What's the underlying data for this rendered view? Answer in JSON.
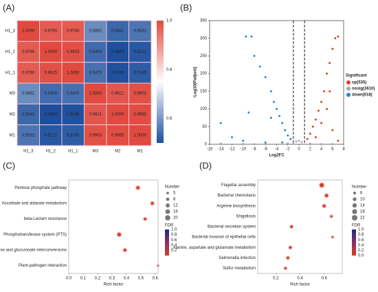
{
  "chart_data": [
    {
      "type": "heatmap",
      "panel": "(A)",
      "rows": [
        "H1_3",
        "H1_2",
        "H1_1",
        "M3",
        "M2",
        "M1"
      ],
      "columns": [
        "H1_3",
        "H1_2",
        "H1_1",
        "M3",
        "M2",
        "M1"
      ],
      "values": [
        [
          1.0,
          0.976,
          0.976,
          0.5862,
          0.5341,
          0.5532
        ],
        [
          0.976,
          1.0,
          0.9915,
          0.54,
          0.4983,
          0.5121
        ],
        [
          0.976,
          0.9915,
          1.0,
          0.547,
          0.5035,
          0.5185
        ],
        [
          0.5862,
          0.54,
          0.547,
          1.0,
          0.9821,
          0.9903
        ],
        [
          0.5341,
          0.4983,
          0.5035,
          0.9821,
          1.0,
          0.9955
        ],
        [
          0.5532,
          0.5121,
          0.5185,
          0.9903,
          0.9955,
          1.0
        ]
      ],
      "value_labels": [
        [
          "1.0000",
          "0.9760",
          "0.9760",
          "0.5862",
          "0.5341",
          "0.5532"
        ],
        [
          "0.9760",
          "1.0000",
          "0.9915",
          "0.5400",
          "0.4983",
          "0.5121"
        ],
        [
          "0.9760",
          "0.9915",
          "1.0000",
          "0.5470",
          "0.5035",
          "0.5185"
        ],
        [
          "0.5862",
          "0.5400",
          "0.5470",
          "1.0000",
          "0.9821",
          "0.9903"
        ],
        [
          "0.5341",
          "0.4983",
          "0.5035",
          "0.9821",
          "1.0000",
          "0.9955"
        ],
        [
          "0.5532",
          "0.5121",
          "0.5185",
          "0.9903",
          "0.9955",
          "1.0000"
        ]
      ],
      "clim": [
        0.5,
        1.0
      ],
      "colorbar_ticks": [
        0.6,
        0.8,
        {
          "value": 1.0,
          "label": "1.0"
        }
      ],
      "colors": [
        "#1d4f9e",
        "#ffffff",
        "#e04a3f"
      ]
    },
    {
      "type": "scatter",
      "panel": "(B)",
      "x_label": "Log2FC",
      "y_label": "-Log10(Padjust)",
      "legend_title": "Significant",
      "xlim": [
        -16,
        8
      ],
      "xticks": [
        -16,
        -14,
        -12,
        -10,
        -8,
        -6,
        -4,
        -2,
        0,
        2,
        4,
        6,
        8
      ],
      "ylim": [
        0,
        350
      ],
      "yticks": [
        0,
        50,
        100,
        150,
        200,
        250,
        300,
        350
      ],
      "vlines": [
        -1,
        1
      ],
      "series": [
        {
          "name": "up(535)",
          "color": "#d9412b",
          "x": [
            7,
            6.5,
            6,
            5.5,
            5,
            4.5,
            4,
            3.5,
            3,
            2.5,
            2,
            1.5,
            4,
            5,
            6,
            7,
            3,
            5.5
          ],
          "values": [
            305,
            300,
            270,
            230,
            200,
            150,
            120,
            95,
            70,
            50,
            30,
            15,
            60,
            100,
            40,
            10,
            20,
            150
          ]
        },
        {
          "name": "nosig(3610)",
          "color": "#aaaaaa",
          "x": [
            -14,
            -10,
            -6,
            -2,
            -0.5,
            0,
            0.5,
            2,
            6,
            -1,
            -8,
            4
          ],
          "values": [
            2,
            1,
            1,
            3,
            8,
            10,
            6,
            2,
            1,
            1,
            0.5,
            0.5
          ]
        },
        {
          "name": "down(618)",
          "color": "#2e86c8",
          "x": [
            -9.5,
            -8.5,
            -8,
            -7,
            -6,
            -5,
            -4.5,
            -4,
            -3.5,
            -3,
            -2.5,
            -2,
            -1.5,
            -14,
            -12,
            -10,
            -6,
            -3,
            -9,
            -5
          ],
          "values": [
            305,
            305,
            250,
            220,
            190,
            150,
            120,
            100,
            80,
            60,
            40,
            25,
            15,
            60,
            20,
            10,
            5,
            5,
            90,
            75
          ]
        }
      ]
    },
    {
      "type": "bubble",
      "panel": "(C)",
      "x_label": "Rich factor",
      "categories": [
        "Pentose phosphate pathway",
        "Ascorbate and aldarate metabolism",
        "beta-Lactam resistance",
        "Phosphotransferase system (PTS)",
        "Pentose and glucuronate interconversions",
        "Plant-pathogen interaction"
      ],
      "values": [
        0.48,
        0.58,
        0.53,
        0.35,
        0.39,
        0.62
      ],
      "sizes": [
        14,
        12,
        10,
        16,
        12,
        5
      ],
      "fdr": [
        0.02,
        0.03,
        0.05,
        0.04,
        0.05,
        0.08
      ],
      "xlim": [
        0,
        0.62
      ],
      "xticks": [
        {
          "value": 0,
          "label": "0.0"
        },
        0.1,
        0.2,
        0.3,
        0.4,
        0.5,
        0.6
      ],
      "size_legend": {
        "title": "Number",
        "values": [
          5,
          8,
          12,
          16,
          20
        ]
      },
      "fdr_legend": {
        "title": "FDR",
        "lim": [
          0,
          1
        ],
        "ticks": [
          {
            "value": 1.0,
            "label": "1.0"
          },
          0.8,
          0.6,
          0.4,
          0.2
        ]
      }
    },
    {
      "type": "bubble",
      "panel": "(D)",
      "x_label": "Rich factor",
      "categories": [
        "Flagellar assembly",
        "Bacterial chemotaxis",
        "Arginine biosynthesis",
        "Shigellosis",
        "Bacterial secretion system",
        "Bacterial invasion of epithelial cells",
        "Alanine, aspartate and glutamate metabolism",
        "Salmonella infection",
        "Sulfur metabolism"
      ],
      "values": [
        0.58,
        0.62,
        0.6,
        0.66,
        0.33,
        0.67,
        0.32,
        0.3,
        0.28
      ],
      "sizes": [
        20,
        14,
        12,
        8,
        10,
        6,
        10,
        10,
        8
      ],
      "fdr": [
        0.01,
        0.02,
        0.03,
        0.04,
        0.03,
        0.05,
        0.03,
        0.04,
        0.04
      ],
      "xlim": [
        0.05,
        0.75
      ],
      "xticks": [
        0.2,
        0.4,
        0.6
      ],
      "size_legend": {
        "title": "Number",
        "values": [
          6,
          10,
          14,
          18,
          22
        ]
      },
      "fdr_legend": {
        "title": "FDR",
        "lim": [
          0,
          1
        ],
        "ticks": [
          {
            "value": 1.0,
            "label": "1.0"
          },
          0.8,
          0.6,
          0.4,
          0.2,
          {
            "value": 0,
            "label": "0.0"
          }
        ]
      }
    }
  ]
}
